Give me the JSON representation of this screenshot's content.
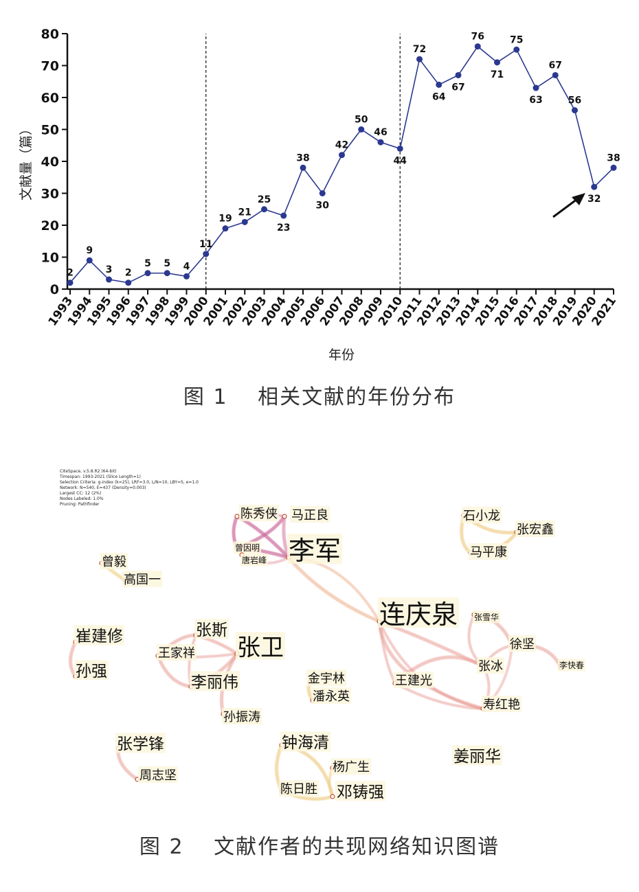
{
  "chart_data": [
    {
      "type": "line",
      "ylabel": "文献量（篇）",
      "xlabel": "年份",
      "ylim": [
        0,
        80
      ],
      "yticks": [
        0,
        10,
        20,
        30,
        40,
        50,
        60,
        70,
        80
      ],
      "x": [
        "1993",
        "1994",
        "1995",
        "1996",
        "1997",
        "1998",
        "1999",
        "2000",
        "2001",
        "2002",
        "2003",
        "2004",
        "2005",
        "2006",
        "2007",
        "2008",
        "2009",
        "2010",
        "2011",
        "2012",
        "2013",
        "2014",
        "2015",
        "2016",
        "2017",
        "2018",
        "2019",
        "2020",
        "2021"
      ],
      "values": [
        2,
        9,
        3,
        2,
        5,
        5,
        4,
        11,
        19,
        21,
        25,
        23,
        38,
        30,
        42,
        50,
        46,
        44,
        72,
        64,
        67,
        76,
        71,
        75,
        63,
        67,
        56,
        32,
        38
      ],
      "label_position": [
        "above",
        "above",
        "above",
        "above",
        "above",
        "above",
        "above",
        "above",
        "above",
        "above",
        "above",
        "below",
        "above",
        "below",
        "above",
        "above",
        "above",
        "below",
        "above",
        "below",
        "below",
        "above",
        "below",
        "above",
        "below",
        "above",
        "above",
        "below",
        "above"
      ],
      "labels": [
        "2",
        "9",
        "3",
        "2",
        "5",
        "5",
        "4",
        "11",
        "19",
        "21",
        "25",
        "23",
        "38",
        "30",
        "42",
        "50",
        "46",
        "44",
        "72",
        "64",
        "67",
        "76",
        "71",
        "75",
        "63",
        "67",
        "56",
        "32",
        "38"
      ],
      "dashed_vlines_at": [
        "2000",
        "2010"
      ],
      "arrow_points_to": "2020",
      "color": "#2b3990"
    },
    {
      "type": "network",
      "info_lines": [
        "CiteSpace, v.5.8.R2 (64-bit)",
        "Timespan: 1993-2021 (Slice Length=1)",
        "Selection Criteria: g-index (k=25), LRF=3.0, L/N=10, LBY=5, e=1.0",
        "Network: N=540, E=437 (Density=0.003)",
        "Largest CC: 12 (2%)",
        "Nodes Labeled: 1.0%",
        "Pruning: Pathfinder"
      ],
      "nodes": [
        {
          "id": "chenxiuxia",
          "label": "陈秀侠",
          "size": "m"
        },
        {
          "id": "mazhengliang",
          "label": "马正良",
          "size": "m"
        },
        {
          "id": "zengguoming",
          "label": "曾因明",
          "size": "s"
        },
        {
          "id": "tangyanfeng",
          "label": "唐岩峰",
          "size": "s"
        },
        {
          "id": "lijun",
          "label": "李军",
          "size": "xl"
        },
        {
          "id": "shixiaolong",
          "label": "石小龙",
          "size": "m"
        },
        {
          "id": "zhanghongxin",
          "label": "张宏鑫",
          "size": "m"
        },
        {
          "id": "mapingkang",
          "label": "马平康",
          "size": "m"
        },
        {
          "id": "zengyi",
          "label": "曾毅",
          "size": "m"
        },
        {
          "id": "gaoguoyi",
          "label": "高国一",
          "size": "m"
        },
        {
          "id": "lianqingquan",
          "label": "连庆泉",
          "size": "xl"
        },
        {
          "id": "zhangxuehua",
          "label": "张雪华",
          "size": "s"
        },
        {
          "id": "xujian",
          "label": "徐坚",
          "size": "m"
        },
        {
          "id": "likuaichun",
          "label": "李快春",
          "size": "s"
        },
        {
          "id": "zhangbing",
          "label": "张冰",
          "size": "m"
        },
        {
          "id": "wangjianguang",
          "label": "王建光",
          "size": "m"
        },
        {
          "id": "shouhongyan",
          "label": "寿红艳",
          "size": "m"
        },
        {
          "id": "cuijianxiu",
          "label": "崔建修",
          "size": "l"
        },
        {
          "id": "sunqiang",
          "label": "孙强",
          "size": "l"
        },
        {
          "id": "zhangsi",
          "label": "张斯",
          "size": "l"
        },
        {
          "id": "zhangwei",
          "label": "张卫",
          "size": "xl2"
        },
        {
          "id": "wangjiaxiang",
          "label": "王家祥",
          "size": "m"
        },
        {
          "id": "liliwei",
          "label": "李丽伟",
          "size": "l"
        },
        {
          "id": "sunzhentao",
          "label": "孙振涛",
          "size": "m"
        },
        {
          "id": "jinyulin",
          "label": "金宇林",
          "size": "m"
        },
        {
          "id": "panyongying",
          "label": "潘永英",
          "size": "m"
        },
        {
          "id": "zhangxuefeng",
          "label": "张学锋",
          "size": "l"
        },
        {
          "id": "zhouzhijian",
          "label": "周志坚",
          "size": "m"
        },
        {
          "id": "zhonghaiqing",
          "label": "钟海清",
          "size": "l"
        },
        {
          "id": "yangguangsheng",
          "label": "杨广生",
          "size": "m"
        },
        {
          "id": "chenrisheng",
          "label": "陈日胜",
          "size": "m"
        },
        {
          "id": "dengzhuqiang",
          "label": "邓铸强",
          "size": "l"
        },
        {
          "id": "jianglihua",
          "label": "姜丽华",
          "size": "l"
        }
      ]
    }
  ],
  "captions": {
    "fig1": "图 1　 相关文献的年份分布",
    "fig2": "图 2　 文献作者的共现网络知识图谱"
  }
}
